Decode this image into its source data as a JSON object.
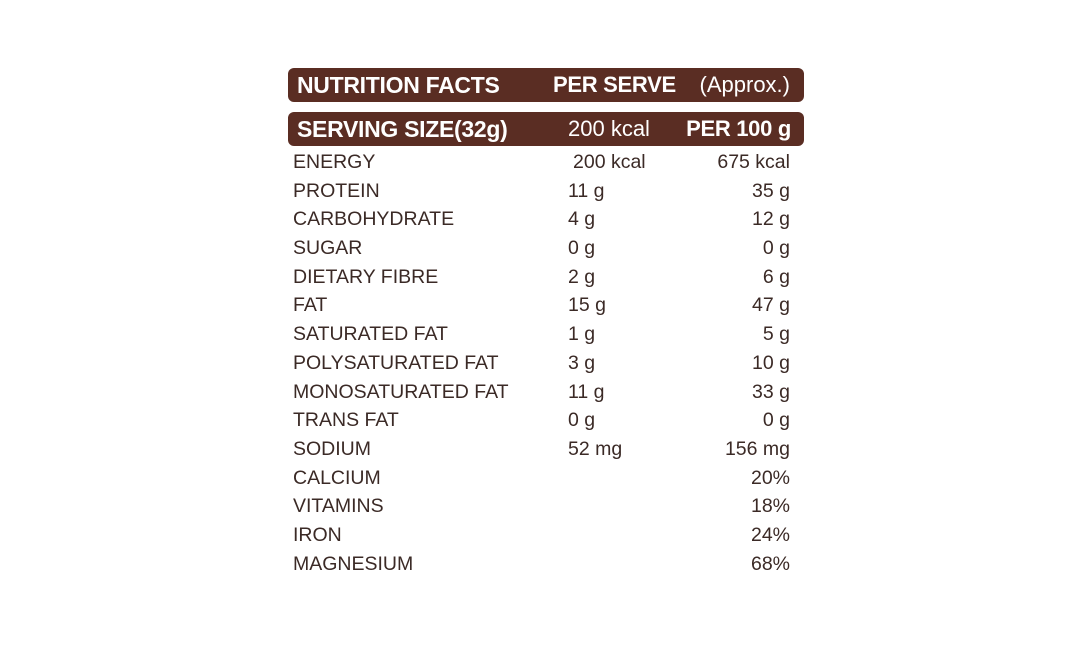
{
  "header": {
    "title": "NUTRITION FACTS",
    "per_serve": "PER SERVE",
    "approx": "(Approx.)"
  },
  "subheader": {
    "serving_size": "SERVING SIZE(32g)",
    "kcal": "200 kcal",
    "per_100g": "PER 100 g"
  },
  "rows": [
    {
      "name": "ENERGY",
      "per_serve": "200 kcal",
      "per_100g": "675 kcal"
    },
    {
      "name": "PROTEIN",
      "per_serve": "11 g",
      "per_100g": "35 g"
    },
    {
      "name": "CARBOHYDRATE",
      "per_serve": "4 g",
      "per_100g": "12 g"
    },
    {
      "name": "SUGAR",
      "per_serve": "0 g",
      "per_100g": "0 g"
    },
    {
      "name": "DIETARY FIBRE",
      "per_serve": "2 g",
      "per_100g": "6 g"
    },
    {
      "name": "FAT",
      "per_serve": "15 g",
      "per_100g": "47 g"
    },
    {
      "name": "SATURATED FAT",
      "per_serve": "1 g",
      "per_100g": "5 g"
    },
    {
      "name": "POLYSATURATED FAT",
      "per_serve": "3 g",
      "per_100g": "10 g"
    },
    {
      "name": "MONOSATURATED FAT",
      "per_serve": "11 g",
      "per_100g": "33 g"
    },
    {
      "name": "TRANS FAT",
      "per_serve": "0 g",
      "per_100g": "0 g"
    },
    {
      "name": "SODIUM",
      "per_serve": "52 mg",
      "per_100g": "156 mg"
    },
    {
      "name": "CALCIUM",
      "per_serve": "",
      "per_100g": "20%"
    },
    {
      "name": "VITAMINS",
      "per_serve": "",
      "per_100g": "18%"
    },
    {
      "name": "IRON",
      "per_serve": "",
      "per_100g": "24%"
    },
    {
      "name": "MAGNESIUM",
      "per_serve": "",
      "per_100g": "68%"
    }
  ],
  "colors": {
    "bar_background": "#5a2d23",
    "text": "#3b2a26"
  }
}
